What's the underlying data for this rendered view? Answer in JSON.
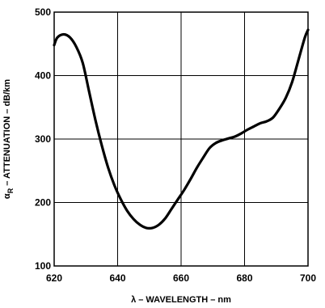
{
  "chart_data": {
    "type": "line",
    "title": "",
    "xlabel": "λ – WAVELENGTH – nm",
    "ylabel": {
      "prefix": "α",
      "subscript": "R",
      "suffix": " – ATTENUATION – dB/km"
    },
    "xlim": [
      620,
      700
    ],
    "ylim": [
      100,
      500
    ],
    "x_ticks": [
      620,
      640,
      660,
      680,
      700
    ],
    "y_ticks": [
      100,
      200,
      300,
      400,
      500
    ],
    "x_tick_labels": [
      "620",
      "640",
      "660",
      "680",
      "700"
    ],
    "y_tick_labels": [
      "100",
      "200",
      "300",
      "400",
      "500"
    ],
    "grid": true,
    "legend": "none",
    "line_color": "#000000",
    "series": [
      {
        "x": [
          620,
          621,
          623,
          625,
          627,
          629,
          631,
          633,
          635,
          637,
          639,
          641,
          643,
          645,
          647,
          649,
          651,
          653,
          655,
          657,
          659,
          661,
          663,
          665,
          667,
          669,
          671,
          673,
          675,
          677,
          679,
          681,
          683,
          685,
          687,
          689,
          691,
          693,
          695,
          697,
          699,
          700
        ],
        "y": [
          448,
          460,
          465,
          460,
          445,
          420,
          375,
          330,
          290,
          255,
          227,
          205,
          187,
          174,
          165,
          160,
          160,
          165,
          175,
          190,
          205,
          220,
          237,
          255,
          271,
          286,
          294,
          298,
          301,
          304,
          309,
          315,
          320,
          325,
          328,
          334,
          348,
          365,
          390,
          425,
          460,
          472
        ]
      }
    ]
  }
}
